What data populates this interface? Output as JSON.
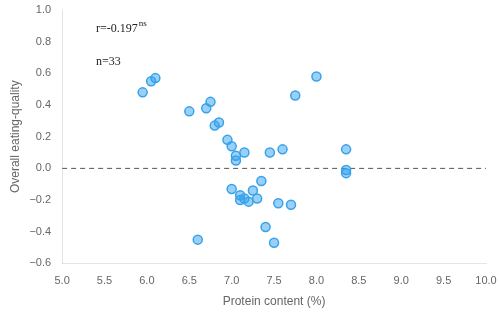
{
  "chart_data": {
    "type": "scatter",
    "x": [
      5.95,
      6.05,
      6.1,
      6.5,
      6.6,
      6.7,
      6.75,
      6.8,
      6.85,
      6.95,
      7.0,
      7.0,
      7.05,
      7.05,
      7.1,
      7.1,
      7.15,
      7.15,
      7.2,
      7.25,
      7.3,
      7.35,
      7.4,
      7.45,
      7.5,
      7.55,
      7.6,
      7.7,
      7.75,
      8.0,
      8.35,
      8.35,
      8.35
    ],
    "values": [
      0.48,
      0.55,
      0.57,
      0.36,
      -0.45,
      0.38,
      0.42,
      0.27,
      0.29,
      0.18,
      0.14,
      -0.13,
      0.05,
      0.08,
      -0.17,
      -0.2,
      0.1,
      -0.19,
      -0.21,
      -0.14,
      -0.19,
      -0.08,
      -0.37,
      0.1,
      -0.47,
      -0.22,
      0.12,
      -0.23,
      0.46,
      0.58,
      -0.03,
      -0.01,
      0.12
    ],
    "xlabel": "Protein content (%)",
    "ylabel": "Overall eating-quality",
    "xlim": [
      5.0,
      10.0
    ],
    "ylim": [
      -0.6,
      1.0
    ],
    "xticks": [
      {
        "value": 5.0,
        "label": "5.0"
      },
      {
        "value": 5.5,
        "label": "5.5"
      },
      {
        "value": 6.0,
        "label": "6.0"
      },
      {
        "value": 6.5,
        "label": "6.5"
      },
      {
        "value": 7.0,
        "label": "7.0"
      },
      {
        "value": 7.5,
        "label": "7.5"
      },
      {
        "value": 8.0,
        "label": "8.0"
      },
      {
        "value": 8.5,
        "label": "8.5"
      },
      {
        "value": 9.0,
        "label": "9.0"
      },
      {
        "value": 9.5,
        "label": "9.5"
      },
      {
        "value": 10.0,
        "label": "10.0"
      }
    ],
    "yticks": [
      {
        "value": -0.6,
        "label": "−0.6"
      },
      {
        "value": -0.4,
        "label": "−0.4"
      },
      {
        "value": -0.2,
        "label": "−0.2"
      },
      {
        "value": 0.0,
        "label": "0.0"
      },
      {
        "value": 0.2,
        "label": "0.2"
      },
      {
        "value": 0.4,
        "label": "0.4"
      },
      {
        "value": 0.6,
        "label": "0.6"
      },
      {
        "value": 0.8,
        "label": "0.8"
      },
      {
        "value": 1.0,
        "label": "1.0"
      }
    ],
    "hline": 0.0,
    "annotations": [
      {
        "text": "r=-0.197",
        "sup": "ns"
      },
      {
        "text": "n=33"
      }
    ],
    "grid": false
  }
}
